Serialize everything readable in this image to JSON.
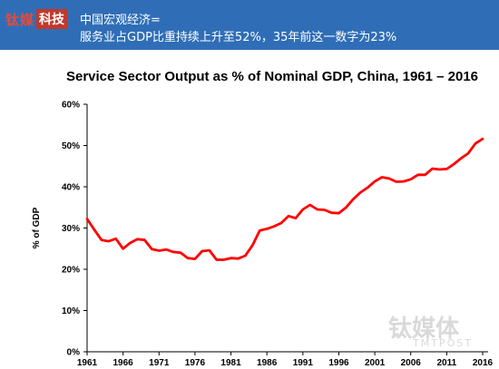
{
  "banner": {
    "logo_part1": "钛媒",
    "logo_part2": "科技",
    "line1": "中国宏观经济=",
    "line2": "服务业占GDP比重持续上升至52%，35年前这一数字为23%"
  },
  "watermark": {
    "main": "钛媒体",
    "sub": "TMTPOST"
  },
  "colors": {
    "banner": "#2f6eb7",
    "line": "#ff0000"
  },
  "chart_data": {
    "type": "line",
    "title": "Service Sector Output as % of Nominal GDP, China, 1961 – 2016",
    "ylabel": "% of GDP",
    "xlabel": "",
    "ylim": [
      0,
      60
    ],
    "xlim": [
      1961,
      2016
    ],
    "y_ticks": [
      "0%",
      "10%",
      "20%",
      "30%",
      "40%",
      "50%",
      "60%"
    ],
    "x_ticks": [
      "1961",
      "1966",
      "1971",
      "1976",
      "1981",
      "1986",
      "1991",
      "1996",
      "2001",
      "2006",
      "2011",
      "2016"
    ],
    "grid": false,
    "series": [
      {
        "x": [
          1961,
          1962,
          1963,
          1964,
          1965,
          1966,
          1967,
          1968,
          1969,
          1970,
          1971,
          1972,
          1973,
          1974,
          1975,
          1976,
          1977,
          1978,
          1979,
          1980,
          1981,
          1982,
          1983,
          1984,
          1985,
          1986,
          1987,
          1988,
          1989,
          1990,
          1991,
          1992,
          1993,
          1994,
          1995,
          1996,
          1997,
          1998,
          1999,
          2000,
          2001,
          2002,
          2003,
          2004,
          2005,
          2006,
          2007,
          2008,
          2009,
          2010,
          2011,
          2012,
          2013,
          2014,
          2015,
          2016
        ],
        "y": [
          32.2,
          29.6,
          27.1,
          26.8,
          27.4,
          25.0,
          26.4,
          27.3,
          27.1,
          24.9,
          24.5,
          24.8,
          24.2,
          24.0,
          22.7,
          22.5,
          24.4,
          24.6,
          22.3,
          22.3,
          22.7,
          22.6,
          23.3,
          25.8,
          29.4,
          29.8,
          30.4,
          31.2,
          32.9,
          32.4,
          34.5,
          35.6,
          34.5,
          34.4,
          33.7,
          33.6,
          35.0,
          37.0,
          38.6,
          39.8,
          41.3,
          42.3,
          42.0,
          41.2,
          41.3,
          41.8,
          42.9,
          42.9,
          44.4,
          44.2,
          44.3,
          45.5,
          46.9,
          48.1,
          50.5,
          51.6
        ]
      }
    ]
  }
}
